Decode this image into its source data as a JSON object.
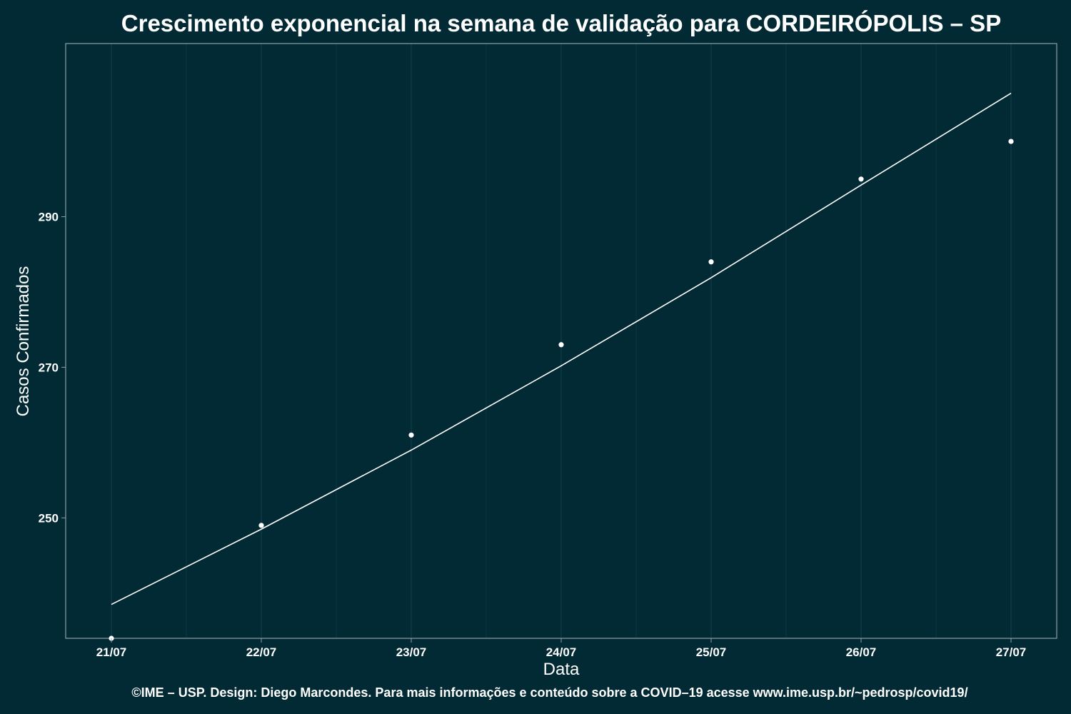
{
  "chart_data": {
    "type": "scatter",
    "title": "Crescimento exponencial na semana de validação para CORDEIRÓPOLIS – SP",
    "xlabel": "Data",
    "ylabel": "Casos Confirmados",
    "categories": [
      "21/07",
      "22/07",
      "23/07",
      "24/07",
      "25/07",
      "26/07",
      "27/07"
    ],
    "ylim": [
      234,
      313
    ],
    "yticks": [
      250,
      270,
      290
    ],
    "grid": true,
    "legend": "none",
    "series": [
      {
        "kind": "points",
        "values": [
          234,
          249,
          261,
          273,
          284,
          295,
          300
        ]
      },
      {
        "kind": "fit-line",
        "values": [
          238.5,
          248.5,
          259.0,
          270.2,
          281.9,
          294.2,
          306.4
        ]
      }
    ],
    "caption": "©IME – USP. Design: Diego Marcondes. Para mais informações e conteúdo sobre a COVID–19 acesse www.ime.usp.br/~pedrosp/covid19/"
  },
  "colors": {
    "background": "#022a35",
    "grid": "#0f3d49",
    "panel_border": "#8aa0a6",
    "points": "#ffffff",
    "line": "#ffffff",
    "text": "#ffffff"
  }
}
